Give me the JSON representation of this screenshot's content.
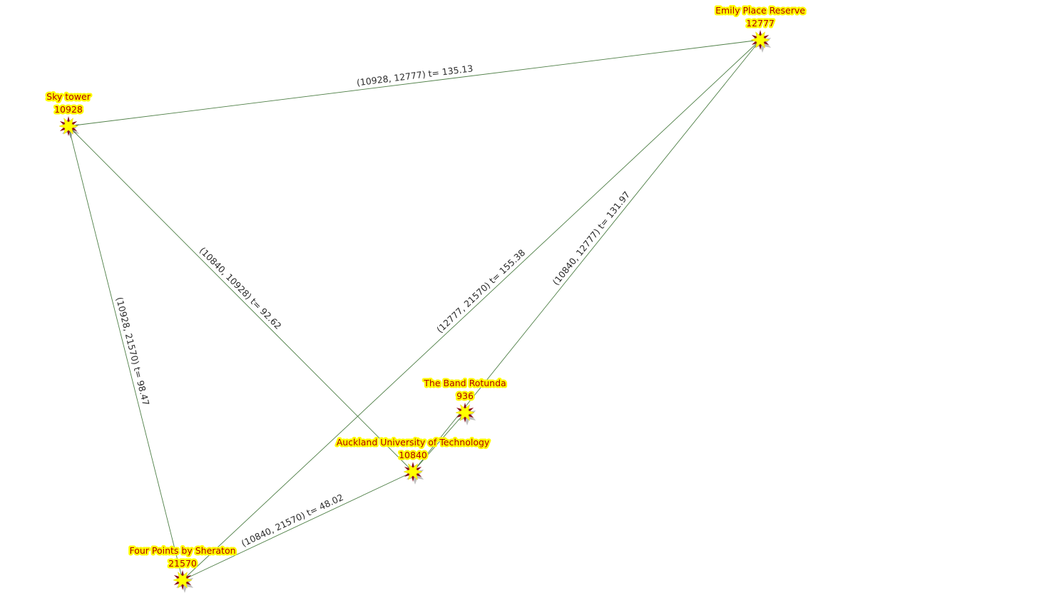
{
  "graph": {
    "colors": {
      "edge": "#4e7f46",
      "label_highlight": "#ffff00",
      "label_text": "#b00000",
      "star_fill": "#ffff00",
      "star_accent": "#8b0a1a"
    },
    "nodes": [
      {
        "id": "12777",
        "name": "Emily Place Reserve",
        "icon": "star-icon"
      },
      {
        "id": "10928",
        "name": "Sky tower",
        "icon": "star-icon"
      },
      {
        "id": "936",
        "name": "The Band Rotunda",
        "icon": "star-icon"
      },
      {
        "id": "10840",
        "name": "Auckland University of Technology",
        "icon": "star-icon"
      },
      {
        "id": "21570",
        "name": "Four Points by Sheraton",
        "icon": "star-icon"
      }
    ],
    "edges": [
      {
        "source": "10928",
        "target": "12777",
        "label": "(10928, 12777) t= 135.13"
      },
      {
        "source": "10840",
        "target": "10928",
        "label": "(10840, 10928) t= 92.62"
      },
      {
        "source": "10928",
        "target": "21570",
        "label": "(10928, 21570) t= 98.47"
      },
      {
        "source": "12777",
        "target": "21570",
        "label": "(12777, 21570) t= 155.38"
      },
      {
        "source": "10840",
        "target": "12777",
        "label": "(10840, 12777) t= 131.97"
      },
      {
        "source": "10840",
        "target": "21570",
        "label": "(10840, 21570) t= 48.02"
      },
      {
        "source": "10840",
        "target": "936",
        "label": ""
      }
    ]
  }
}
